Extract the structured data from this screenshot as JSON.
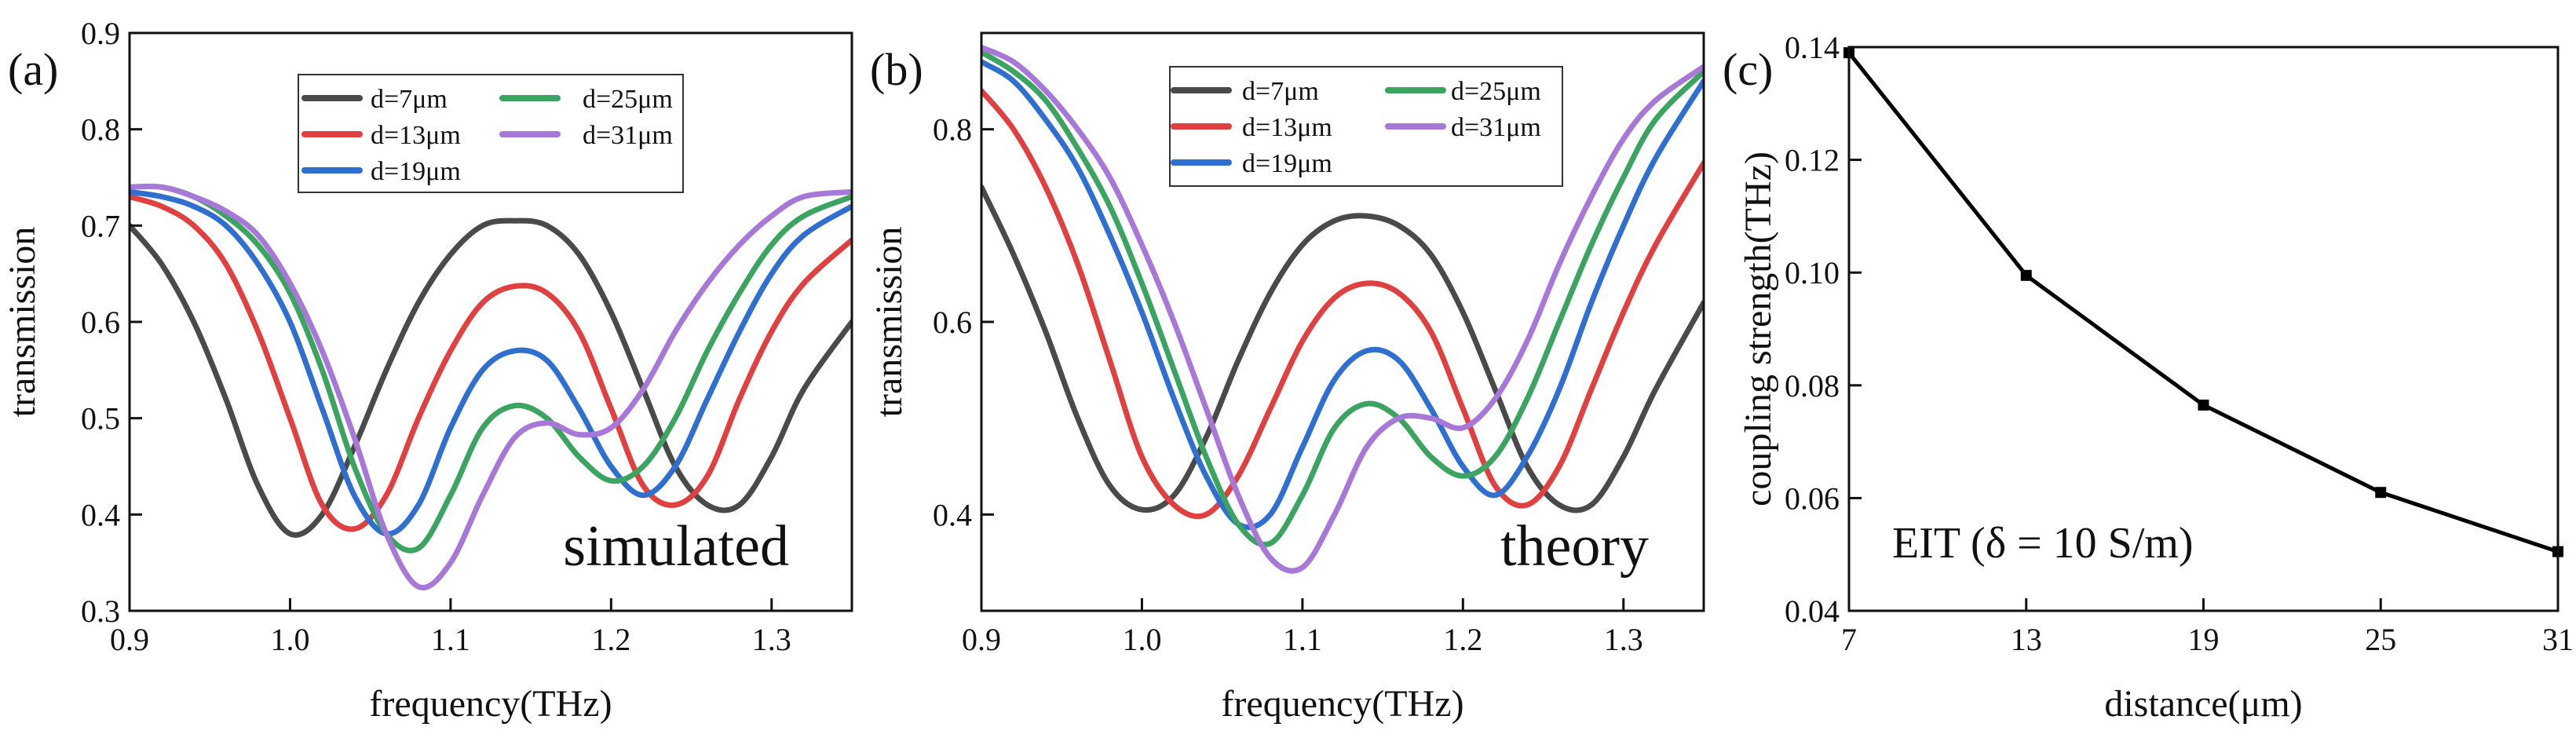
{
  "chart_data": [
    {
      "type": "line",
      "panel_label": "(a)",
      "xlabel": "frequency(THz)",
      "ylabel": "transmission",
      "xlim": [
        0.9,
        1.35
      ],
      "ylim": [
        0.3,
        0.9
      ],
      "xticks": [
        "0.9",
        "1.0",
        "1.1",
        "1.2",
        "1.3"
      ],
      "yticks": [
        "0.3",
        "0.4",
        "0.5",
        "0.6",
        "0.7",
        "0.8",
        "0.9"
      ],
      "annotation": "simulated",
      "legend_position": "top-center",
      "series": [
        {
          "name": "d=7μm",
          "color": "#4a4a4a",
          "x": [
            0.9,
            0.92,
            0.94,
            0.96,
            0.98,
            1.0,
            1.02,
            1.04,
            1.06,
            1.08,
            1.1,
            1.12,
            1.14,
            1.16,
            1.18,
            1.2,
            1.22,
            1.24,
            1.26,
            1.28,
            1.3,
            1.32,
            1.35
          ],
          "y": [
            0.7,
            0.66,
            0.6,
            0.52,
            0.43,
            0.38,
            0.4,
            0.47,
            0.55,
            0.62,
            0.67,
            0.7,
            0.705,
            0.7,
            0.67,
            0.61,
            0.53,
            0.45,
            0.41,
            0.41,
            0.46,
            0.53,
            0.6
          ]
        },
        {
          "name": "d=13μm",
          "color": "#e04040",
          "x": [
            0.9,
            0.92,
            0.94,
            0.96,
            0.98,
            1.0,
            1.02,
            1.04,
            1.06,
            1.08,
            1.1,
            1.12,
            1.14,
            1.16,
            1.18,
            1.2,
            1.22,
            1.24,
            1.26,
            1.28,
            1.3,
            1.32,
            1.35
          ],
          "y": [
            0.73,
            0.72,
            0.7,
            0.66,
            0.59,
            0.5,
            0.41,
            0.385,
            0.42,
            0.5,
            0.57,
            0.62,
            0.637,
            0.63,
            0.59,
            0.51,
            0.43,
            0.41,
            0.44,
            0.52,
            0.59,
            0.64,
            0.685
          ]
        },
        {
          "name": "d=19μm",
          "color": "#2f6fd0",
          "x": [
            0.9,
            0.92,
            0.94,
            0.96,
            0.98,
            1.0,
            1.02,
            1.04,
            1.06,
            1.08,
            1.1,
            1.12,
            1.14,
            1.16,
            1.18,
            1.2,
            1.22,
            1.24,
            1.26,
            1.28,
            1.3,
            1.32,
            1.35
          ],
          "y": [
            0.735,
            0.73,
            0.72,
            0.7,
            0.66,
            0.6,
            0.51,
            0.42,
            0.38,
            0.41,
            0.49,
            0.55,
            0.57,
            0.56,
            0.51,
            0.45,
            0.42,
            0.45,
            0.52,
            0.59,
            0.65,
            0.69,
            0.72
          ]
        },
        {
          "name": "d=25μm",
          "color": "#3aa460",
          "x": [
            0.9,
            0.92,
            0.94,
            0.96,
            0.98,
            1.0,
            1.02,
            1.04,
            1.06,
            1.08,
            1.1,
            1.12,
            1.14,
            1.16,
            1.18,
            1.2,
            1.22,
            1.24,
            1.26,
            1.28,
            1.3,
            1.32,
            1.35
          ],
          "y": [
            0.74,
            0.74,
            0.73,
            0.71,
            0.68,
            0.63,
            0.55,
            0.45,
            0.38,
            0.365,
            0.42,
            0.49,
            0.513,
            0.5,
            0.46,
            0.435,
            0.45,
            0.5,
            0.57,
            0.63,
            0.68,
            0.71,
            0.73
          ]
        },
        {
          "name": "d=31μm",
          "color": "#a878d8",
          "x": [
            0.9,
            0.92,
            0.94,
            0.96,
            0.98,
            1.0,
            1.02,
            1.04,
            1.06,
            1.08,
            1.1,
            1.12,
            1.14,
            1.16,
            1.18,
            1.2,
            1.22,
            1.24,
            1.26,
            1.28,
            1.3,
            1.32,
            1.35
          ],
          "y": [
            0.74,
            0.74,
            0.73,
            0.715,
            0.69,
            0.64,
            0.57,
            0.48,
            0.38,
            0.325,
            0.35,
            0.42,
            0.48,
            0.495,
            0.483,
            0.49,
            0.53,
            0.59,
            0.64,
            0.68,
            0.71,
            0.73,
            0.735
          ]
        }
      ]
    },
    {
      "type": "line",
      "panel_label": "(b)",
      "xlabel": "frequency(THz)",
      "ylabel": "transmission",
      "xlim": [
        0.9,
        1.35
      ],
      "ylim": [
        0.3,
        0.9
      ],
      "xticks": [
        "0.9",
        "1.0",
        "1.1",
        "1.2",
        "1.3"
      ],
      "yticks": [
        "0.4",
        "0.6",
        "0.8"
      ],
      "annotation": "theory",
      "legend_position": "top-center",
      "series": [
        {
          "name": "d=7μm",
          "color": "#4a4a4a",
          "x": [
            0.9,
            0.92,
            0.94,
            0.96,
            0.98,
            1.0,
            1.02,
            1.04,
            1.06,
            1.08,
            1.1,
            1.12,
            1.14,
            1.16,
            1.18,
            1.2,
            1.22,
            1.24,
            1.26,
            1.28,
            1.3,
            1.32,
            1.35
          ],
          "y": [
            0.74,
            0.67,
            0.59,
            0.5,
            0.43,
            0.405,
            0.42,
            0.48,
            0.56,
            0.63,
            0.68,
            0.705,
            0.71,
            0.7,
            0.67,
            0.61,
            0.53,
            0.45,
            0.41,
            0.41,
            0.46,
            0.53,
            0.62
          ]
        },
        {
          "name": "d=13μm",
          "color": "#e04040",
          "x": [
            0.9,
            0.92,
            0.94,
            0.96,
            0.98,
            1.0,
            1.02,
            1.04,
            1.06,
            1.08,
            1.1,
            1.12,
            1.14,
            1.16,
            1.18,
            1.2,
            1.22,
            1.24,
            1.26,
            1.28,
            1.3,
            1.32,
            1.35
          ],
          "y": [
            0.84,
            0.8,
            0.74,
            0.66,
            0.56,
            0.46,
            0.41,
            0.4,
            0.44,
            0.51,
            0.58,
            0.625,
            0.64,
            0.63,
            0.59,
            0.51,
            0.43,
            0.41,
            0.45,
            0.53,
            0.61,
            0.68,
            0.765
          ]
        },
        {
          "name": "d=19μm",
          "color": "#2f6fd0",
          "x": [
            0.9,
            0.92,
            0.94,
            0.96,
            0.98,
            1.0,
            1.02,
            1.04,
            1.06,
            1.08,
            1.1,
            1.12,
            1.14,
            1.16,
            1.18,
            1.2,
            1.22,
            1.24,
            1.26,
            1.28,
            1.3,
            1.32,
            1.35
          ],
          "y": [
            0.87,
            0.85,
            0.81,
            0.76,
            0.69,
            0.61,
            0.52,
            0.44,
            0.39,
            0.4,
            0.47,
            0.54,
            0.57,
            0.56,
            0.51,
            0.45,
            0.42,
            0.46,
            0.53,
            0.62,
            0.7,
            0.77,
            0.85
          ]
        },
        {
          "name": "d=25μm",
          "color": "#3aa460",
          "x": [
            0.9,
            0.92,
            0.94,
            0.96,
            0.98,
            1.0,
            1.02,
            1.04,
            1.06,
            1.08,
            1.1,
            1.12,
            1.14,
            1.16,
            1.18,
            1.2,
            1.22,
            1.24,
            1.26,
            1.28,
            1.3,
            1.32,
            1.35
          ],
          "y": [
            0.88,
            0.86,
            0.83,
            0.78,
            0.72,
            0.64,
            0.55,
            0.46,
            0.39,
            0.37,
            0.42,
            0.49,
            0.515,
            0.5,
            0.46,
            0.44,
            0.46,
            0.52,
            0.6,
            0.68,
            0.75,
            0.81,
            0.86
          ]
        },
        {
          "name": "d=31μm",
          "color": "#a878d8",
          "x": [
            0.9,
            0.92,
            0.94,
            0.96,
            0.98,
            1.0,
            1.02,
            1.04,
            1.06,
            1.08,
            1.1,
            1.12,
            1.14,
            1.16,
            1.18,
            1.2,
            1.22,
            1.24,
            1.26,
            1.28,
            1.3,
            1.32,
            1.35
          ],
          "y": [
            0.885,
            0.87,
            0.84,
            0.8,
            0.75,
            0.68,
            0.6,
            0.51,
            0.42,
            0.355,
            0.345,
            0.4,
            0.47,
            0.5,
            0.5,
            0.49,
            0.52,
            0.58,
            0.66,
            0.73,
            0.79,
            0.83,
            0.865
          ]
        }
      ]
    },
    {
      "type": "line",
      "panel_label": "(c)",
      "xlabel": "distance(μm)",
      "ylabel": "coupling strength(THz)",
      "xlim": [
        7,
        31
      ],
      "ylim": [
        0.04,
        0.14
      ],
      "xticks": [
        "7",
        "13",
        "19",
        "25",
        "31"
      ],
      "yticks": [
        "0.04",
        "0.06",
        "0.08",
        "0.10",
        "0.12",
        "0.14"
      ],
      "annotation": "EIT (δ = 10 S/m)",
      "series": [
        {
          "name": "coupling strength",
          "color": "#000000",
          "x": [
            7,
            13,
            19,
            25,
            31
          ],
          "y": [
            0.139,
            0.0995,
            0.0765,
            0.061,
            0.0505
          ]
        }
      ]
    }
  ]
}
